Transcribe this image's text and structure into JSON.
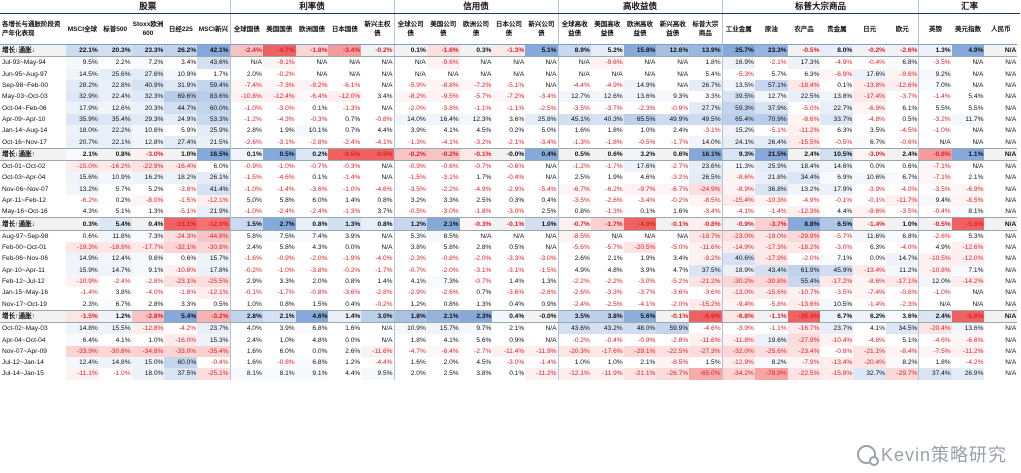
{
  "groups": [
    {
      "label": "股票",
      "span": 5
    },
    {
      "label": "利率债",
      "span": 5
    },
    {
      "label": "信用债",
      "span": 5
    },
    {
      "label": "高收益债",
      "span": 5
    },
    {
      "label": "标普大宗商品",
      "span": 6
    },
    {
      "label": "汇率",
      "span": 5
    }
  ],
  "row_label_header": "各增长与通胀阶段资产年化表现",
  "columns": [
    "MSCI全球",
    "标普500",
    "Stoxx欧洲600",
    "日经225",
    "MSCI新兴",
    "全球国债",
    "美国国债",
    "欧洲国债",
    "日本国债",
    "新兴主权债",
    "全球公司债",
    "美国公司债",
    "欧洲公司债",
    "日本公司债",
    "新兴公司债",
    "全球高收益债",
    "美国高收益债",
    "欧洲高收益债",
    "新兴高收益债",
    "标普大宗商品",
    "工业金属",
    "原油",
    "农产品",
    "贵金属",
    "日元",
    "欧元",
    "英镑",
    "美元指数",
    "人民币"
  ],
  "rows": [
    {
      "label": "增长↓通胀↓",
      "sum": true,
      "v": [
        "22.1%",
        "20.3%",
        "23.3%",
        "26.2%",
        "42.1%",
        "-2.4%",
        "-4.7%",
        "-1.8%",
        "-3.4%",
        "-0.2%",
        "0.1%",
        "-1.6%",
        "0.3%",
        "-1.3%",
        "5.1%",
        "8.9%",
        "5.2%",
        "15.8%",
        "12.6%",
        "13.9%",
        "25.7%",
        "23.3%",
        "-0.5%",
        "8.0%",
        "-0.2%",
        "-2.6%",
        "1.3%",
        "4.9%",
        "N/A"
      ]
    },
    {
      "label": "Jul-93~May-94",
      "v": [
        "9.5%",
        "2.2%",
        "7.2%",
        "3.4%",
        "43.6%",
        "N/A",
        "-9.1%",
        "N/A",
        "N/A",
        "N/A",
        "N/A",
        "-9.6%",
        "N/A",
        "N/A",
        "N/A",
        "N/A",
        "-9.6%",
        "N/A",
        "N/A",
        "1.8%",
        "16.9%",
        "-2.1%",
        "17.3%",
        "-4.9%",
        "-0.4%",
        "6.8%",
        "-3.5%",
        "N/A",
        "N/A"
      ]
    },
    {
      "label": "Jun-95~Aug-97",
      "v": [
        "14.5%",
        "25.6%",
        "27.6%",
        "10.9%",
        "1.7%",
        "2.0%",
        "-0.2%",
        "N/A",
        "N/A",
        "N/A",
        "N/A",
        "N/A",
        "N/A",
        "N/A",
        "N/A",
        "N/A",
        "N/A",
        "N/A",
        "N/A",
        "5.4%",
        "-5.3%",
        "5.7%",
        "6.3%",
        "-6.9%",
        "17.6%",
        "-9.6%",
        "9.2%",
        "N/A",
        "N/A"
      ]
    },
    {
      "label": "Sep-98~Feb-00",
      "v": [
        "28.2%",
        "22.8%",
        "40.9%",
        "31.9%",
        "59.4%",
        "-7.4%",
        "-7.3%",
        "-9.2%",
        "-6.1%",
        "N/A",
        "-5.9%",
        "-8.8%",
        "-7.2%",
        "-5.1%",
        "N/A",
        "-4.4%",
        "-4.9%",
        "14.9%",
        "N/A",
        "26.7%",
        "13.5%",
        "57.1%",
        "-18.4%",
        "0.1%",
        "-13.8%",
        "-12.6%",
        "7.0%",
        "N/A",
        "N/A"
      ]
    },
    {
      "label": "May-03~Oct-03",
      "v": [
        "32.9%",
        "22.4%",
        "32.3%",
        "69.6%",
        "83.6%",
        "-10.8%",
        "-12.4%",
        "-6.4%",
        "-12.0%",
        "3.4%",
        "-8.2%",
        "-9.5%",
        "-5.7%",
        "-7.2%",
        "-3.4%",
        "12.7%",
        "12.6%",
        "13.6%",
        "9.3%",
        "3.3%",
        "39.5%",
        "12.7%",
        "22.5%",
        "13.8%",
        "-17.4%",
        "-3.7%",
        "-1.4%",
        "5.4%",
        "N/A"
      ]
    },
    {
      "label": "Oct-04~Feb-06",
      "v": [
        "17.9%",
        "12.6%",
        "20.3%",
        "44.7%",
        "60.0%",
        "-1.0%",
        "-3.0%",
        "0.1%",
        "-1.3%",
        "N/A",
        "-2.0%",
        "-3.8%",
        "-1.1%",
        "-1.1%",
        "-2.5%",
        "-3.5%",
        "-3.7%",
        "-2.3%",
        "-0.9%",
        "27.7%",
        "59.3%",
        "37.9%",
        "-5.0%",
        "22.7%",
        "-6.9%",
        "6.1%",
        "5.5%",
        "5.5%",
        "N/A"
      ]
    },
    {
      "label": "Apr-09~Apr-10",
      "v": [
        "35.9%",
        "35.4%",
        "29.3%",
        "24.9%",
        "53.3%",
        "-1.2%",
        "-4.3%",
        "-0.3%",
        "0.7%",
        "-0.8%",
        "14.0%",
        "16.4%",
        "12.3%",
        "3.6%",
        "25.8%",
        "45.1%",
        "40.3%",
        "65.5%",
        "49.9%",
        "49.5%",
        "65.4%",
        "70.9%",
        "-8.6%",
        "33.7%",
        "-4.8%",
        "0.5%",
        "-3.2%",
        "11.7%",
        "N/A"
      ]
    },
    {
      "label": "Jan-14~Aug-14",
      "v": [
        "18.0%",
        "22.2%",
        "10.6%",
        "5.9%",
        "25.9%",
        "2.8%",
        "1.9%",
        "10.1%",
        "0.7%",
        "4.4%",
        "3.9%",
        "4.1%",
        "4.5%",
        "0.2%",
        "5.0%",
        "1.6%",
        "1.8%",
        "1.0%",
        "2.4%",
        "-3.1%",
        "15.2%",
        "-5.1%",
        "-11.2%",
        "6.3%",
        "3.5%",
        "-4.5%",
        "-1.0%",
        "N/A",
        "N/A"
      ]
    },
    {
      "label": "Oct-16~Nov-17",
      "v": [
        "20.7%",
        "22.1%",
        "12.8%",
        "27.4%",
        "21.5%",
        "-2.6%",
        "-3.1%",
        "-2.8%",
        "-2.4%",
        "-4.1%",
        "-1.3%",
        "-4.1%",
        "-3.2%",
        "-2.1%",
        "-3.4%",
        "-1.3%",
        "-1.8%",
        "-0.5%",
        "-1.7%",
        "14.0%",
        "24.1%",
        "26.4%",
        "-15.5%",
        "-0.5%",
        "6.7%",
        "-0.6%",
        "N/A",
        "N/A",
        "N/A"
      ]
    },
    {
      "label": "增长↓通胀↑",
      "sum": true,
      "v": [
        "2.1%",
        "0.8%",
        "-3.0%",
        "1.0%",
        "16.5%",
        "0.1%",
        "0.5%",
        "0.2%",
        "-0.5%",
        "-0.5%",
        "-0.2%",
        "-0.2%",
        "-0.1%",
        "-0.0%",
        "0.4%",
        "0.5%",
        "0.6%",
        "3.2%",
        "0.6%",
        "16.1%",
        "9.3%",
        "21.5%",
        "2.4%",
        "10.5%",
        "-3.0%",
        "2.4%",
        "-0.8%",
        "1.1%",
        "N/A"
      ]
    },
    {
      "label": "Oct-01~Oct-02",
      "v": [
        "-15.0%",
        "-16.2%",
        "-22.9%",
        "-16.4%",
        "6.0%",
        "-0.9%",
        "-1.0%",
        "-0.7%",
        "-0.3%",
        "N/A",
        "-0.9%",
        "-0.6%",
        "-0.7%",
        "-0.6%",
        "N/A",
        "-1.2%",
        "-1.7%",
        "17.6%",
        "-2.7%",
        "23.6%",
        "11.3%",
        "25.9%",
        "18.4%",
        "14.6%",
        "0.0%",
        "0.6%",
        "-7.1%",
        "N/A",
        "N/A"
      ]
    },
    {
      "label": "Oct-03~Apr-04",
      "v": [
        "15.6%",
        "10.9%",
        "16.2%",
        "18.2%",
        "26.1%",
        "-1.5%",
        "-4.6%",
        "0.1%",
        "-1.4%",
        "N/A",
        "-1.5%",
        "-3.1%",
        "1.7%",
        "-0.4%",
        "N/A",
        "2.5%",
        "1.9%",
        "4.6%",
        "-3.2%",
        "26.5%",
        "-8.6%",
        "21.8%",
        "34.4%",
        "6.9%",
        "10.6%",
        "6.7%",
        "-7.1%",
        "2.1%",
        "N/A"
      ]
    },
    {
      "label": "Nov-06~Nov-07",
      "v": [
        "13.2%",
        "5.7%",
        "5.2%",
        "-3.8%",
        "41.4%",
        "-1.0%",
        "-1.4%",
        "-3.6%",
        "-1.0%",
        "-4.6%",
        "-3.5%",
        "-2.2%",
        "-4.9%",
        "-2.9%",
        "-5.4%",
        "-6.7%",
        "-6.2%",
        "-9.7%",
        "-6.7%",
        "-24.9%",
        "-8.9%",
        "36.8%",
        "13.2%",
        "17.9%",
        "-3.9%",
        "-4.0%",
        "-3.5%",
        "-6.9%",
        "N/A"
      ]
    },
    {
      "label": "Apr-11~Feb-12",
      "v": [
        "-6.2%",
        "0.2%",
        "-8.0%",
        "-1.5%",
        "-12.1%",
        "5.0%",
        "5.8%",
        "6.0%",
        "1.4%",
        "0.8%",
        "3.2%",
        "3.3%",
        "2.5%",
        "0.3%",
        "0.4%",
        "-3.5%",
        "-2.6%",
        "-3.4%",
        "-0.2%",
        "-8.5%",
        "-15.4%",
        "-10.3%",
        "-4.9%",
        "-0.1%",
        "-0.1%",
        "-11.7%",
        "9.4%",
        "-8.5%",
        "N/A"
      ]
    },
    {
      "label": "May-16~Oct-16",
      "v": [
        "4.3%",
        "5.1%",
        "1.3%",
        "-5.1%",
        "21.9%",
        "-1.0%",
        "-2.4%",
        "-2.4%",
        "-1.3%",
        "3.7%",
        "-0.5%",
        "-3.0%",
        "-1.8%",
        "-3.0%",
        "2.5%",
        "0.8%",
        "-1.3%",
        "0.1%",
        "1.6%",
        "-3.4%",
        "-4.1%",
        "-1.4%",
        "-12.3%",
        "4.4%",
        "-9.6%",
        "-3.5%",
        "-0.4%",
        "8.1%",
        "N/A"
      ]
    },
    {
      "label": "增长↑通胀↓",
      "sum": true,
      "v": [
        "0.3%",
        "5.4%",
        "0.4%",
        "-13.1%",
        "-12.0%",
        "1.5%",
        "2.7%",
        "0.8%",
        "1.3%",
        "0.8%",
        "1.2%",
        "2.1%",
        "-0.3%",
        "-0.1%",
        "1.0%",
        "-0.7%",
        "-1.7%",
        "-4.0%",
        "-0.1%",
        "-0.8%",
        "-0.9%",
        "-3.7%",
        "8.8%",
        "6.5%",
        "-1.4%",
        "1.0%",
        "-0.5%",
        "-5.8%",
        "N/A"
      ]
    },
    {
      "label": "Aug-97~Sep-98",
      "v": [
        "0.6%",
        "11.8%",
        "7.3%",
        "-24.3%",
        "-44.8%",
        "5.8%",
        "7.5%",
        "7.4%",
        "3.9%",
        "N/A",
        "5.3%",
        "8.5%",
        "N/A",
        "N/A",
        "N/A",
        "-8.5%",
        "N/A",
        "N/A",
        "N/A",
        "-19.7%",
        "-23.0%",
        "-19.0%",
        "-29.9%",
        "-5.7%",
        "11.6%",
        "6.8%",
        "-2.6%",
        "5.3%",
        "N/A"
      ]
    },
    {
      "label": "Feb-00~Oct-01",
      "v": [
        "-19.3%",
        "-18.9%",
        "-17.7%",
        "-32.1%",
        "-30.8%",
        "2.4%",
        "5.8%",
        "4.3%",
        "0.0%",
        "N/A",
        "3.8%",
        "5.8%",
        "2.8%",
        "0.5%",
        "N/A",
        "-5.6%",
        "-5.7%",
        "-20.5%",
        "-5.0%",
        "-11.6%",
        "-14.9%",
        "-17.3%",
        "-18.2%",
        "-3.0%",
        "6.3%",
        "-4.0%",
        "4.9%",
        "-12.6%",
        "N/A"
      ]
    },
    {
      "label": "Feb-06~Nov-06",
      "v": [
        "14.9%",
        "12.4%",
        "9.6%",
        "0.6%",
        "15.7%",
        "-1.6%",
        "-0.9%",
        "-2.0%",
        "-1.9%",
        "-4.0%",
        "-2.3%",
        "-0.8%",
        "-2.0%",
        "-3.3%",
        "-3.0%",
        "2.6%",
        "2.1%",
        "1.9%",
        "3.4%",
        "-9.2%",
        "40.6%",
        "-17.9%",
        "-2.0%",
        "7.1%",
        "0.0%",
        "14.7%",
        "-10.5%",
        "-12.0%",
        "N/A"
      ]
    },
    {
      "label": "Apr-10~Apr-11",
      "v": [
        "15.9%",
        "14.7%",
        "9.1%",
        "-10.8%",
        "17.8%",
        "-0.2%",
        "-1.0%",
        "-3.8%",
        "-0.2%",
        "-1.7%",
        "-0.7%",
        "-2.0%",
        "-3.1%",
        "-3.1%",
        "-1.5%",
        "4.9%",
        "4.8%",
        "3.9%",
        "4.7%",
        "37.5%",
        "18.9%",
        "43.4%",
        "61.9%",
        "45.9%",
        "-13.4%",
        "11.2%",
        "-10.8%",
        "7.1%",
        "N/A"
      ]
    },
    {
      "label": "Feb-12~Jul-12",
      "v": [
        "-10.9%",
        "-2.4%",
        "-2.8%",
        "-23.1%",
        "-25.5%",
        "2.9%",
        "3.3%",
        "2.0%",
        "0.8%",
        "1.4%",
        "4.1%",
        "7.3%",
        "-0.7%",
        "1.4%",
        "1.3%",
        "-2.2%",
        "-2.2%",
        "-3.0%",
        "-5.2%",
        "-21.2%",
        "-30.2%",
        "-30.8%",
        "55.4%",
        "-17.2%",
        "-8.6%",
        "-17.1%",
        "12.0%",
        "-14.2%",
        "N/A"
      ]
    },
    {
      "label": "Jan-15~May-16",
      "v": [
        "-1.4%",
        "3.8%",
        "-4.0%",
        "-1.8%",
        "-12.1%",
        "-0.1%",
        "-1.7%",
        "-0.8%",
        "-3.6%",
        "-2.8%",
        "-2.9%",
        "-2.6%",
        "0.7%",
        "-3.6%",
        "-2.8%",
        "-2.6%",
        "-3.3%",
        "-3.7%",
        "-3.6%",
        "-3.6%",
        "-13.0%",
        "-15.6%",
        "-10.7%",
        "-3.5%",
        "-7.4%",
        "-0.6%",
        "-1.0%",
        "N/A",
        "N/A"
      ]
    },
    {
      "label": "Nov-17~Oct-19",
      "v": [
        "2.3%",
        "6.7%",
        "2.8%",
        "3.3%",
        "0.5%",
        "1.0%",
        "0.8%",
        "1.5%",
        "0.4%",
        "-0.2%",
        "1.2%",
        "0.8%",
        "1.3%",
        "0.4%",
        "0.9%",
        "-2.4%",
        "-2.5%",
        "-4.1%",
        "-2.0%",
        "-15.2%",
        "-9.4%",
        "-5.8%",
        "-13.6%",
        "10.5%",
        "-1.4%",
        "-2.3%",
        "N/A",
        "N/A",
        "N/A"
      ]
    },
    {
      "label": "增长↑通胀↑",
      "sum": true,
      "v": [
        "-1.5%",
        "1.2%",
        "-2.8%",
        "5.4%",
        "-3.2%",
        "2.8%",
        "2.1%",
        "4.6%",
        "1.4%",
        "3.0%",
        "1.8%",
        "2.1%",
        "2.3%",
        "0.4%",
        "-0.0%",
        "3.5%",
        "3.8%",
        "5.6%",
        "-0.1%",
        "-5.9%",
        "-6.8%",
        "-1.1%",
        "-25.4%",
        "6.7%",
        "6.2%",
        "3.6%",
        "2.4%",
        "-5.6%",
        "N/A"
      ]
    },
    {
      "label": "Oct-02~May-03",
      "v": [
        "14.8%",
        "15.5%",
        "-12.8%",
        "-4.2%",
        "23.7%",
        "4.0%",
        "3.9%",
        "6.8%",
        "1.6%",
        "N/A",
        "10.9%",
        "15.7%",
        "9.7%",
        "2.1%",
        "N/A",
        "43.6%",
        "43.2%",
        "48.0%",
        "59.9%",
        "-4.6%",
        "-3.9%",
        "-1.1%",
        "-16.7%",
        "23.7%",
        "4.1%",
        "34.5%",
        "-20.4%",
        "13.6%",
        "N/A"
      ]
    },
    {
      "label": "Apr-04~Oct-04",
      "v": [
        "6.4%",
        "4.1%",
        "1.0%",
        "-16.0%",
        "15.3%",
        "2.4%",
        "1.0%",
        "4.8%",
        "0.0%",
        "N/A",
        "1.8%",
        "4.1%",
        "5.6%",
        "0.9%",
        "N/A",
        "-0.2%",
        "-0.4%",
        "-0.9%",
        "-2.8%",
        "-11.6%",
        "-11.8%",
        "19.6%",
        "-27.9%",
        "-10.4%",
        "-4.8%",
        "5.1%",
        "-4.6%",
        "-6.6%",
        "N/A"
      ]
    },
    {
      "label": "Nov-07~Apr-09",
      "v": [
        "-33.9%",
        "-30.8%",
        "-34.8%",
        "-33.0%",
        "-35.4%",
        "1.6%",
        "6.0%",
        "0.0%",
        "2.6%",
        "-11.6%",
        "-4.7%",
        "-6.4%",
        "-2.7%",
        "-11.4%",
        "-11.9%",
        "-20.3%",
        "-17.6%",
        "-29.1%",
        "-22.5%",
        "-27.3%",
        "-32.0%",
        "-25.6%",
        "-23.4%",
        "-0.8%",
        "-21.1%",
        "-8.4%",
        "-7.5%",
        "-11.2%",
        "N/A"
      ]
    },
    {
      "label": "Jul-12~Jan-14",
      "v": [
        "12.4%",
        "14.8%",
        "15.0%",
        "60.0%",
        "-0.4%",
        "1.6%",
        "-0.8%",
        "6.8%",
        "1.2%",
        "-4.4%",
        "1.6%",
        "2.0%",
        "4.5%",
        "-3.0%",
        "-1.4%",
        "1.0%",
        "1.0%",
        "2.1%",
        "-8.5%",
        "1.5%",
        "-12.9%",
        "8.2%",
        "-7.9%",
        "-13.4%",
        "-20.4%",
        "8.2%",
        "1.8%",
        "-4.2%",
        "N/A"
      ]
    },
    {
      "label": "Jul-14~Jan-15",
      "v": [
        "-11.1%",
        "-1.0%",
        "18.0%",
        "37.5%",
        "-25.1%",
        "8.1%",
        "8.1%",
        "9.1%",
        "4.4%",
        "9.5%",
        "2.0%",
        "2.5%",
        "3.8%",
        "0.1%",
        "-11.2%",
        "-12.1%",
        "-11.9%",
        "-21.1%",
        "-26.7%",
        "-65.0%",
        "-34.2%",
        "-78.9%",
        "-22.5%",
        "-15.8%",
        "32.7%",
        "-29.7%",
        "37.4%",
        "26.9%",
        "N/A"
      ]
    }
  ],
  "heat": {
    "pos": "#7fa4d8",
    "neg": "#ee5a5a"
  },
  "watermark": "Kevin策略研究"
}
